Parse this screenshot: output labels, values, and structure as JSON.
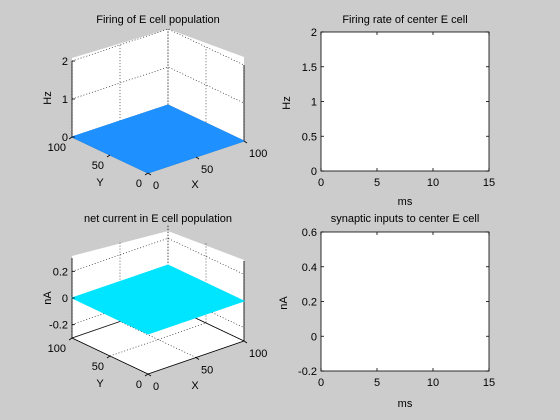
{
  "figure": {
    "background": "#cccccc"
  },
  "chart_data": [
    {
      "type": "surface",
      "title": "Firing of E cell population",
      "xlabel": "X",
      "ylabel": "Y",
      "zlabel": "Hz",
      "xlim": [
        0,
        100
      ],
      "ylim": [
        0,
        100
      ],
      "zlim": [
        0,
        2
      ],
      "xticks": [
        "0",
        "50",
        "100"
      ],
      "yticks": [
        "0",
        "50",
        "100"
      ],
      "zticks": [
        "0",
        "1",
        "2"
      ],
      "surface_value": 0,
      "surface_color": "#1e90ff",
      "grid": true
    },
    {
      "type": "line",
      "title": "Firing rate of center E cell",
      "xlabel": "ms",
      "ylabel": "Hz",
      "xlim": [
        0,
        15
      ],
      "ylim": [
        0,
        2
      ],
      "xticks": [
        "0",
        "5",
        "10",
        "15"
      ],
      "yticks": [
        "0",
        "0.5",
        "1",
        "1.5",
        "2"
      ],
      "series": [],
      "grid": false
    },
    {
      "type": "surface",
      "title": "net current in E cell population",
      "xlabel": "X",
      "ylabel": "Y",
      "zlabel": "nA",
      "xlim": [
        0,
        100
      ],
      "ylim": [
        0,
        100
      ],
      "zlim": [
        -0.3,
        0.3
      ],
      "xticks": [
        "0",
        "50",
        "100"
      ],
      "yticks": [
        "0",
        "50",
        "100"
      ],
      "zticks": [
        "-0.2",
        "0",
        "0.2"
      ],
      "surface_value": 0,
      "surface_color": "#00e5ff",
      "grid": true
    },
    {
      "type": "line",
      "title": "synaptic inputs to center E cell",
      "xlabel": "ms",
      "ylabel": "nA",
      "xlim": [
        0,
        15
      ],
      "ylim": [
        -0.2,
        0.6
      ],
      "xticks": [
        "0",
        "5",
        "10",
        "15"
      ],
      "yticks": [
        "-0.2",
        "0",
        "0.2",
        "0.4",
        "0.6"
      ],
      "series": [],
      "grid": false
    }
  ]
}
